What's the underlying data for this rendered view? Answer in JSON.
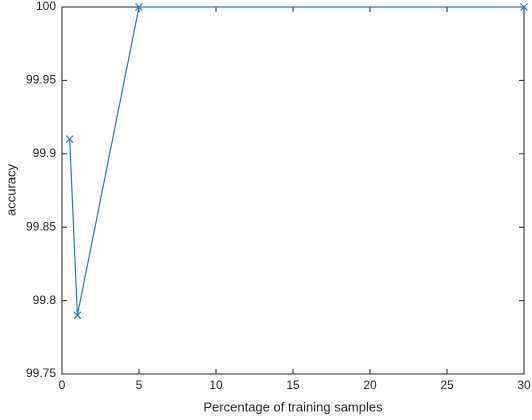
{
  "chart_data": {
    "type": "line",
    "x_label": "Percentage of training samples",
    "y_label": "accuracy",
    "series": [
      {
        "x": [
          0.5,
          1,
          5,
          30
        ],
        "values": [
          99.91,
          99.79,
          100,
          100
        ],
        "color": "#2b7bba",
        "marker": "x"
      }
    ],
    "xlim": [
      0,
      30
    ],
    "xticks": [
      0,
      5,
      10,
      15,
      20,
      25,
      30
    ],
    "ylim": [
      99.75,
      100
    ],
    "yticks": [
      99.75,
      99.8,
      99.85,
      99.9,
      99.95,
      100
    ],
    "grid": false
  }
}
